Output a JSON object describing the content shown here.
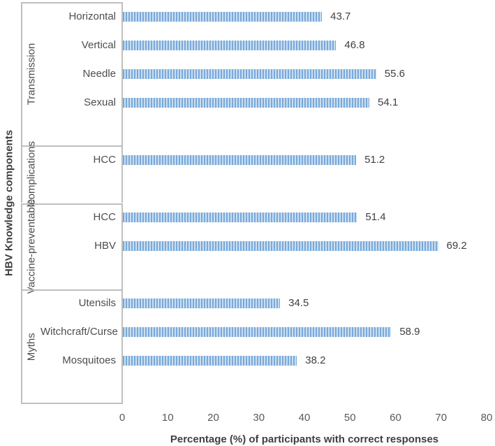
{
  "chart_data": {
    "type": "bar",
    "orientation": "horizontal",
    "title": "",
    "xlabel": "Percentage (%) of participants with correct responses",
    "ylabel": "HBV Knowledge components",
    "xlim": [
      0,
      80
    ],
    "xticks": [
      0,
      10,
      20,
      30,
      40,
      50,
      60,
      70,
      80
    ],
    "grid": false,
    "legend": false,
    "data_labels": true,
    "groups": [
      {
        "label": "Transmission",
        "items": [
          {
            "label": "Horizontal",
            "value": 43.7,
            "value_label": "43.7"
          },
          {
            "label": "Vertical",
            "value": 46.8,
            "value_label": "46.8"
          },
          {
            "label": "Needle",
            "value": 55.6,
            "value_label": "55.6"
          },
          {
            "label": "Sexual",
            "value": 54.1,
            "value_label": "54.1"
          }
        ]
      },
      {
        "label": "Complications",
        "items": [
          {
            "label": "HCC",
            "value": 51.2,
            "value_label": "51.2"
          }
        ]
      },
      {
        "label": "Vaccine-preventable",
        "items": [
          {
            "label": "HCC",
            "value": 51.4,
            "value_label": "51.4"
          },
          {
            "label": "HBV",
            "value": 69.2,
            "value_label": "69.2"
          }
        ]
      },
      {
        "label": "Myths",
        "items": [
          {
            "label": "Utensils",
            "value": 34.5,
            "value_label": "34.5"
          },
          {
            "label": "Witchcraft/Curse",
            "value": 58.9,
            "value_label": "58.9"
          },
          {
            "label": "Mosquitoes",
            "value": 38.2,
            "value_label": "38.2"
          }
        ]
      }
    ],
    "colors": {
      "bar_stripe": "#79a9d9",
      "bar_background": "#cadef2",
      "frame": "#bfbfbf",
      "text": "#4d4d4d",
      "title_text": "#3f3f3f"
    }
  }
}
